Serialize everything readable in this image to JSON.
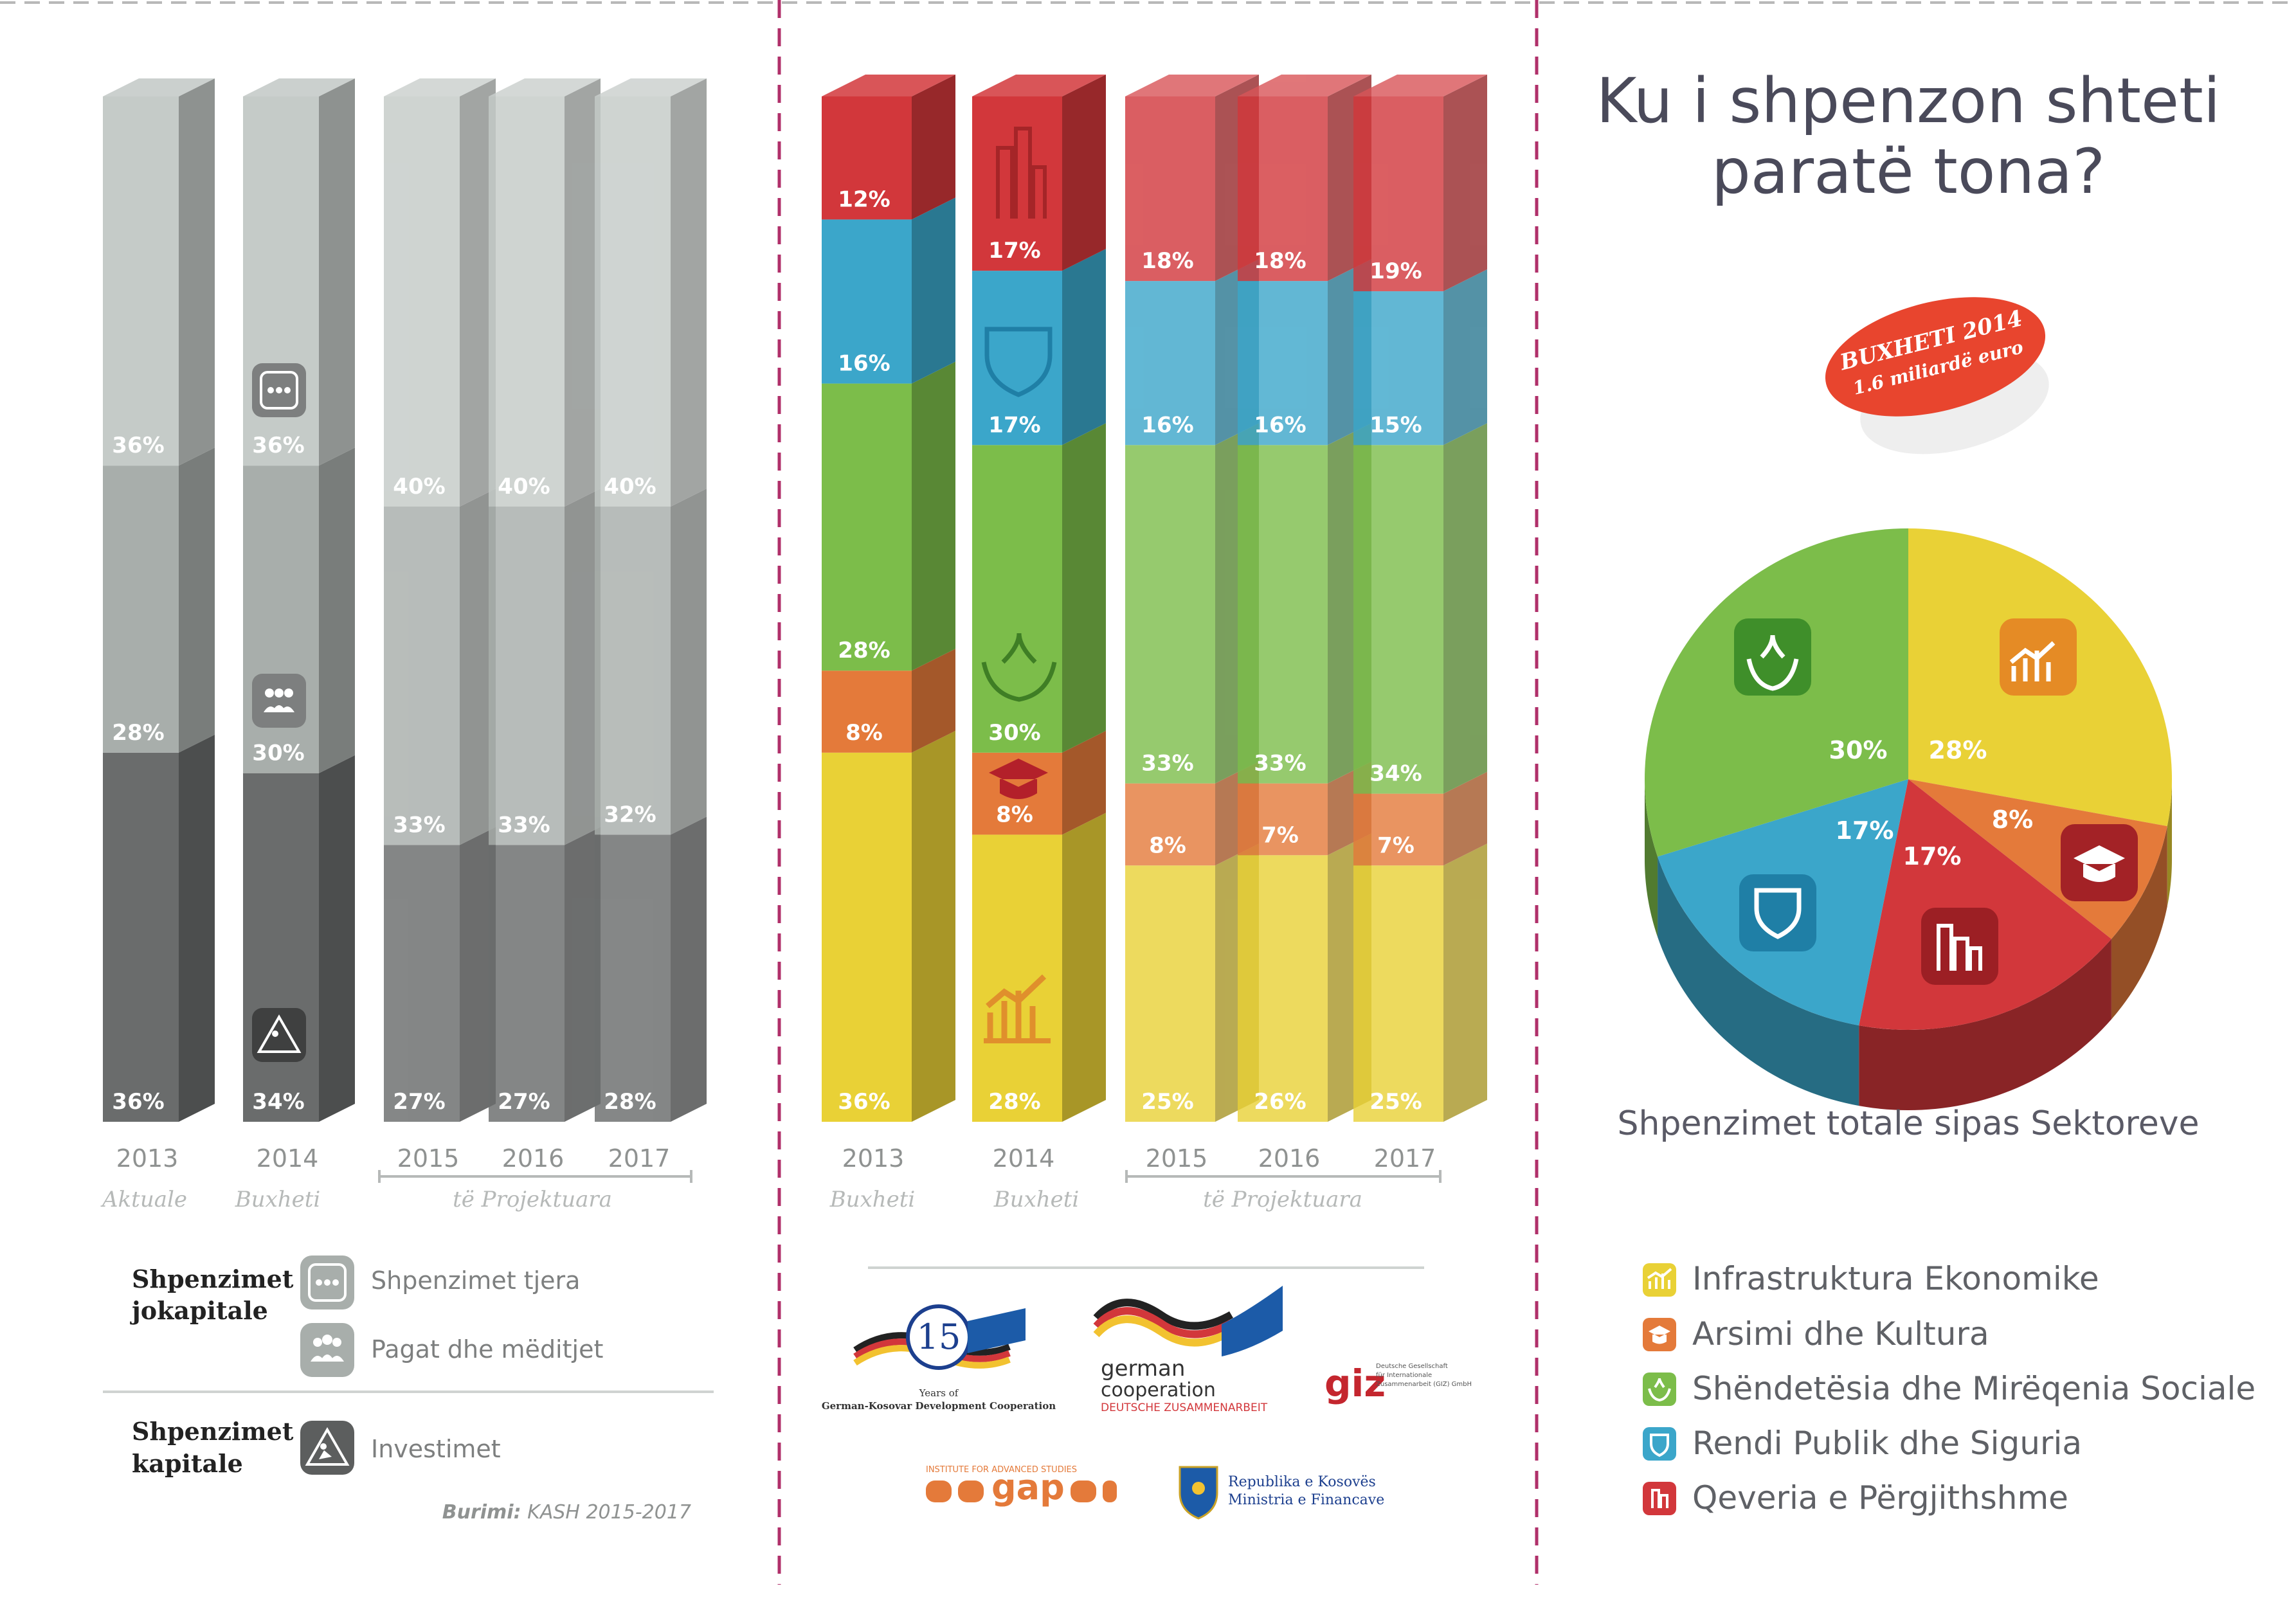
{
  "colors": {
    "infrastructure": "#e9d136",
    "education": "#e47a3a",
    "health": "#7cbd4a",
    "public_order": "#3ba6ca",
    "government": "#d2373b",
    "grey_dark": "#6a6c6c",
    "grey_mid": "#a8aeab",
    "grey_light": "#c5cbc8",
    "title": "#4a4a5a",
    "sticker": "#e8452e",
    "divider": "#b0306a"
  },
  "title": {
    "line1": "Ku i shpenzon shteti",
    "line2": "paratë tona?"
  },
  "sticker": {
    "line1": "BUXHETI 2014",
    "line2": "1.6 miliardë euro"
  },
  "chart_data": [
    {
      "type": "bar",
      "stacked": true,
      "categories": [
        "2013",
        "2014",
        "2015",
        "2016",
        "2017"
      ],
      "category_notes": [
        "Aktuale",
        "Buxheti",
        "të Projektuara"
      ],
      "series": [
        {
          "name": "Investimet",
          "values": [
            36,
            34,
            27,
            27,
            28
          ]
        },
        {
          "name": "Pagat dhe mëditjet",
          "values": [
            28,
            30,
            33,
            33,
            32
          ]
        },
        {
          "name": "Shpenzimet tjera",
          "values": [
            36,
            36,
            40,
            40,
            40
          ]
        }
      ],
      "value_labels": [
        [
          "36%",
          "34%",
          "27%",
          "27%",
          "28%"
        ],
        [
          "28%",
          "30%",
          "33%",
          "33%",
          "32%"
        ],
        [
          "36%",
          "36%",
          "40%",
          "40%",
          "40%"
        ]
      ],
      "ylim": [
        0,
        100
      ],
      "legend": {
        "groups": [
          {
            "title1": "Shpenzimet",
            "title2": "jokapitale",
            "items": [
              {
                "label": "Shpenzimet tjera",
                "icon": "dots-icon"
              },
              {
                "label": "Pagat dhe mëditjet",
                "icon": "people-icon"
              }
            ]
          },
          {
            "title1": "Shpenzimet",
            "title2": "kapitale",
            "items": [
              {
                "label": "Investimet",
                "icon": "construction-icon"
              }
            ]
          }
        ]
      },
      "source": {
        "label": "Burimi:",
        "text": "KASH 2015-2017"
      }
    },
    {
      "type": "bar",
      "stacked": true,
      "categories": [
        "2013",
        "2014",
        "2015",
        "2016",
        "2017"
      ],
      "category_notes": [
        "Buxheti",
        "Buxheti",
        "të Projektuara"
      ],
      "series": [
        {
          "name": "Infrastruktura Ekonomike",
          "values": [
            36,
            28,
            25,
            26,
            25
          ]
        },
        {
          "name": "Arsimi dhe Kultura",
          "values": [
            8,
            8,
            8,
            7,
            7
          ]
        },
        {
          "name": "Shëndetësia dhe Mirëqenia Sociale",
          "values": [
            28,
            30,
            33,
            33,
            34
          ]
        },
        {
          "name": "Rendi Publik dhe Siguria",
          "values": [
            16,
            17,
            16,
            16,
            15
          ]
        },
        {
          "name": "Qeveria e Përgjithshme",
          "values": [
            12,
            17,
            18,
            18,
            19
          ]
        }
      ],
      "value_labels": [
        [
          "36%",
          "28%",
          "25%",
          "26%",
          "25%"
        ],
        [
          "8%",
          "8%",
          "8%",
          "7%",
          "7%"
        ],
        [
          "28%",
          "30%",
          "33%",
          "33%",
          "34%"
        ],
        [
          "16%",
          "17%",
          "16%",
          "16%",
          "15%"
        ],
        [
          "12%",
          "17%",
          "18%",
          "18%",
          "19%"
        ]
      ],
      "ylim": [
        0,
        100
      ]
    },
    {
      "type": "pie",
      "title": "Shpenzimet totale sipas Sektoreve",
      "slices": [
        {
          "name": "Infrastruktura Ekonomike",
          "value": 28,
          "label": "28%"
        },
        {
          "name": "Arsimi dhe Kultura",
          "value": 8,
          "label": "8%"
        },
        {
          "name": "Qeveria e Përgjithshme",
          "value": 17,
          "label": "17%"
        },
        {
          "name": "Rendi Publik dhe Siguria",
          "value": 17,
          "label": "17%"
        },
        {
          "name": "Shëndetësia dhe Mirëqenia Sociale",
          "value": 30,
          "label": "30%"
        }
      ],
      "legend": [
        {
          "label": "Infrastruktura Ekonomike",
          "icon": "chart-up-icon"
        },
        {
          "label": "Arsimi dhe Kultura",
          "icon": "graduation-cap-icon"
        },
        {
          "label": "Shëndetësia dhe Mirëqenia Sociale",
          "icon": "hands-leaf-icon"
        },
        {
          "label": "Rendi Publik dhe Siguria",
          "icon": "shield-icon"
        },
        {
          "label": "Qeveria e Përgjithshme",
          "icon": "building-icon"
        }
      ]
    }
  ],
  "logos": {
    "anniversary_number": "15",
    "anniversary_line1": "Years of",
    "anniversary_line2": "German-Kosovar Development Cooperation",
    "german_line1": "german",
    "german_line2": "cooperation",
    "german_line3": "DEUTSCHE ZUSAMMENARBEIT",
    "giz": "giz",
    "giz_line1": "Deutsche Gesellschaft",
    "giz_line2": "für Internationale",
    "giz_line3": "Zusammenarbeit (GIZ) GmbH",
    "gap_top": "INSTITUTE FOR ADVANCED STUDIES",
    "gap": "gap",
    "ministry_line1": "Republika e Kosovës",
    "ministry_line2": "Ministria e Financave"
  }
}
